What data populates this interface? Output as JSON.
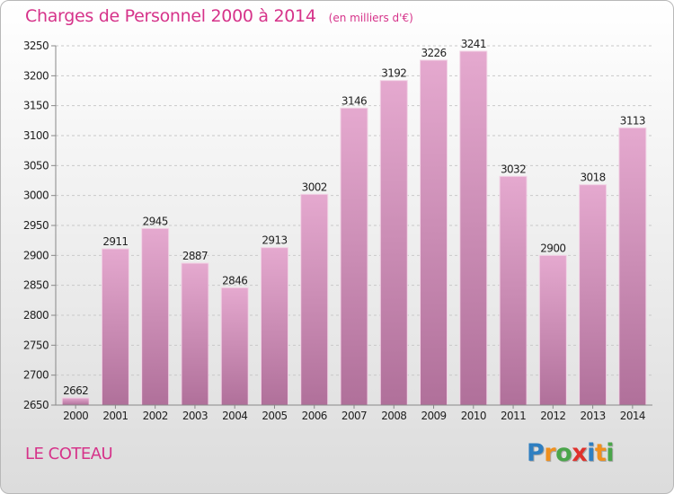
{
  "header": {
    "title": "Charges de Personnel 2000 à 2014",
    "subtitle": "(en milliers d'€)"
  },
  "footer": {
    "place": "LE COTEAU",
    "logo_letters": [
      {
        "char": "P",
        "color": "#2f7fc1"
      },
      {
        "char": "r",
        "color": "#f0901e"
      },
      {
        "char": "o",
        "color": "#4aa54a"
      },
      {
        "char": "x",
        "color": "#e0312c"
      },
      {
        "char": "i",
        "color": "#2f7fc1"
      },
      {
        "char": "t",
        "color": "#f0901e"
      },
      {
        "char": "i",
        "color": "#4aa54a"
      }
    ]
  },
  "colors": {
    "accent": "#d6338a",
    "bar_top": "#e5a9cf",
    "bar_bottom": "#b0709a"
  },
  "chart_data": {
    "type": "bar",
    "categories": [
      "2000",
      "2001",
      "2002",
      "2003",
      "2004",
      "2005",
      "2006",
      "2007",
      "2008",
      "2009",
      "2010",
      "2011",
      "2012",
      "2013",
      "2014"
    ],
    "values": [
      2662,
      2911,
      2945,
      2887,
      2846,
      2913,
      3002,
      3146,
      3192,
      3226,
      3241,
      3032,
      2900,
      3018,
      3113
    ],
    "ylim": [
      2650,
      3250
    ],
    "yticks": [
      2650,
      2700,
      2750,
      2800,
      2850,
      2900,
      2950,
      3000,
      3050,
      3100,
      3150,
      3200,
      3250
    ],
    "grid": true,
    "xlabel": "",
    "ylabel": ""
  }
}
